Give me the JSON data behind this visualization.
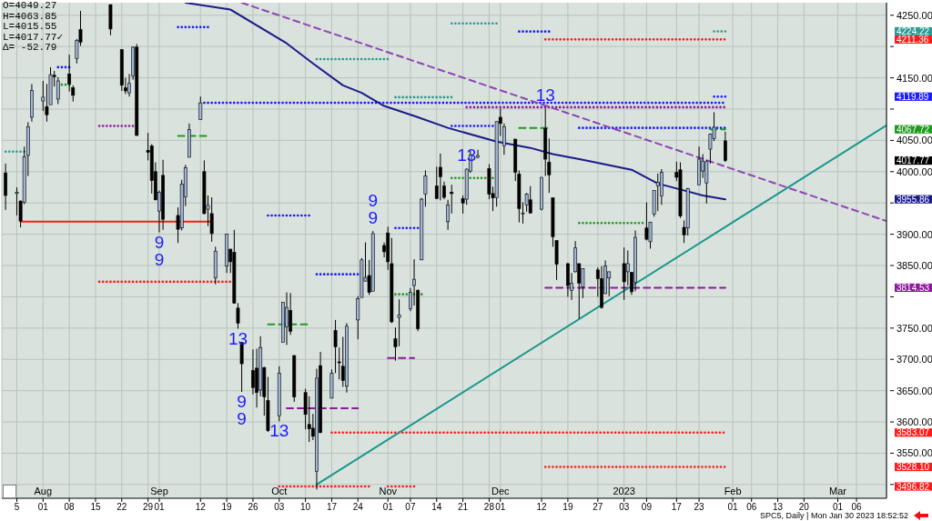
{
  "chart_data": {
    "type": "candlestick",
    "x": [
      "2022-07-22",
      "2022-07-25",
      "2022-07-26",
      "2022-07-27",
      "2022-07-28",
      "2022-07-29",
      "2022-08-01",
      "2022-08-02",
      "2022-08-03",
      "2022-08-04",
      "2022-08-05",
      "2022-08-08",
      "2022-08-09",
      "2022-08-10",
      "2022-08-11",
      "2022-08-19",
      "2022-08-22",
      "2022-08-23",
      "2022-08-24",
      "2022-08-25",
      "2022-08-26",
      "2022-08-29",
      "2022-08-30",
      "2022-08-31",
      "2022-09-01",
      "2022-09-02",
      "2022-09-06",
      "2022-09-07",
      "2022-09-08",
      "2022-09-09",
      "2022-09-12",
      "2022-09-13",
      "2022-09-14",
      "2022-09-15",
      "2022-09-16",
      "2022-09-19",
      "2022-09-20",
      "2022-09-21",
      "2022-09-22",
      "2022-09-23",
      "2022-09-26",
      "2022-09-27",
      "2022-09-28",
      "2022-09-29",
      "2022-09-30",
      "2022-10-03",
      "2022-10-04",
      "2022-10-05",
      "2022-10-06",
      "2022-10-07",
      "2022-10-10",
      "2022-10-11",
      "2022-10-12",
      "2022-10-13",
      "2022-10-14",
      "2022-10-17",
      "2022-10-18",
      "2022-10-19",
      "2022-10-20",
      "2022-10-21",
      "2022-10-24",
      "2022-10-25",
      "2022-10-26",
      "2022-10-27",
      "2022-10-28",
      "2022-10-31",
      "2022-11-01",
      "2022-11-02",
      "2022-11-03",
      "2022-11-04",
      "2022-11-07",
      "2022-11-08",
      "2022-11-09",
      "2022-11-10",
      "2022-11-11",
      "2022-11-14",
      "2022-11-15",
      "2022-11-16",
      "2022-11-17",
      "2022-11-18",
      "2022-11-21",
      "2022-11-22",
      "2022-11-23",
      "2022-11-25",
      "2022-11-28",
      "2022-11-29",
      "2022-11-30",
      "2022-12-01",
      "2022-12-02",
      "2022-12-05",
      "2022-12-06",
      "2022-12-07",
      "2022-12-08",
      "2022-12-09",
      "2022-12-12",
      "2022-12-13",
      "2022-12-14",
      "2022-12-15",
      "2022-12-16",
      "2022-12-19",
      "2022-12-20",
      "2022-12-21",
      "2022-12-22",
      "2022-12-23",
      "2022-12-27",
      "2022-12-28",
      "2022-12-29",
      "2022-12-30",
      "2023-01-03",
      "2023-01-04",
      "2023-01-05",
      "2023-01-06",
      "2023-01-09",
      "2023-01-10",
      "2023-01-11",
      "2023-01-12",
      "2023-01-13",
      "2023-01-17",
      "2023-01-18",
      "2023-01-19",
      "2023-01-20",
      "2023-01-23",
      "2023-01-24",
      "2023-01-25",
      "2023-01-26",
      "2023-01-27",
      "2023-01-30"
    ],
    "ohlc": [
      [
        3998,
        4013,
        3939,
        3962
      ],
      [
        3965,
        3975,
        3930,
        3967
      ],
      [
        3953,
        3954,
        3911,
        3921
      ],
      [
        3951,
        4040,
        3948,
        4024
      ],
      [
        4026,
        4079,
        3993,
        4072
      ],
      [
        4087,
        4140,
        4080,
        4130
      ],
      [
        4113,
        4145,
        4097,
        4119
      ],
      [
        4104,
        4140,
        4080,
        4091
      ],
      [
        4107,
        4167,
        4107,
        4155
      ],
      [
        4154,
        4161,
        4136,
        4152
      ],
      [
        4116,
        4151,
        4108,
        4145
      ],
      [
        4156,
        4187,
        4128,
        4140
      ],
      [
        4134,
        4138,
        4112,
        4122
      ],
      [
        4181,
        4212,
        4173,
        4210
      ],
      [
        4227,
        4257,
        4201,
        4207
      ],
      [
        4267,
        4267,
        4218,
        4228
      ],
      [
        4195,
        4195,
        4129,
        4138
      ],
      [
        4134,
        4150,
        4124,
        4129
      ],
      [
        4126,
        4156,
        4120,
        4141
      ],
      [
        4153,
        4200,
        4147,
        4199
      ],
      [
        4199,
        4204,
        4057,
        4058
      ],
      [
        4034,
        4062,
        4018,
        4031
      ],
      [
        4041,
        4044,
        3965,
        3986
      ],
      [
        4000,
        4015,
        3954,
        3955
      ],
      [
        3937,
        3970,
        3903,
        3967
      ],
      [
        3994,
        4019,
        3907,
        3924
      ],
      [
        3930,
        3943,
        3886,
        3908
      ],
      [
        3910,
        3987,
        3906,
        3980
      ],
      [
        3960,
        4011,
        3945,
        4006
      ],
      [
        4023,
        4077,
        4023,
        4067
      ],
      [
        4083,
        4120,
        4083,
        4110
      ],
      [
        4000,
        4018,
        3932,
        3933
      ],
      [
        3940,
        3962,
        3913,
        3946
      ],
      [
        3933,
        3959,
        3888,
        3901
      ],
      [
        3830,
        3880,
        3820,
        3873
      ],
      [
        3849,
        3900,
        3838,
        3900
      ],
      [
        3876,
        3877,
        3838,
        3856
      ],
      [
        3871,
        3907,
        3789,
        3790
      ],
      [
        3782,
        3790,
        3749,
        3758
      ],
      [
        3727,
        3727,
        3648,
        3693
      ],
      [
        3682,
        3716,
        3644,
        3655
      ],
      [
        3686,
        3717,
        3623,
        3647
      ],
      [
        3651,
        3737,
        3641,
        3719
      ],
      [
        3687,
        3688,
        3610,
        3640
      ],
      [
        3634,
        3672,
        3584,
        3586
      ],
      [
        3610,
        3689,
        3601,
        3678
      ],
      [
        3727,
        3791,
        3727,
        3791
      ],
      [
        3752,
        3807,
        3723,
        3783
      ],
      [
        3778,
        3806,
        3739,
        3745
      ],
      [
        3706,
        3707,
        3632,
        3640
      ],
      [
        3647,
        3653,
        3588,
        3612
      ],
      [
        3596,
        3641,
        3568,
        3589
      ],
      [
        3590,
        3613,
        3571,
        3577
      ],
      [
        3521,
        3685,
        3492,
        3670
      ],
      [
        3690,
        3712,
        3582,
        3583
      ],
      [
        3638,
        3684,
        3638,
        3678
      ],
      [
        3746,
        3763,
        3678,
        3720
      ],
      [
        3696,
        3719,
        3668,
        3695
      ],
      [
        3689,
        3736,
        3656,
        3666
      ],
      [
        3657,
        3758,
        3647,
        3753
      ],
      [
        3763,
        3801,
        3732,
        3797
      ],
      [
        3799,
        3862,
        3799,
        3859
      ],
      [
        3825,
        3887,
        3825,
        3831
      ],
      [
        3834,
        3859,
        3803,
        3807
      ],
      [
        3809,
        3905,
        3809,
        3901
      ],
      [
        3882,
        3887,
        3863,
        3872
      ],
      [
        3902,
        3912,
        3843,
        3856
      ],
      [
        3853,
        3894,
        3758,
        3760
      ],
      [
        3733,
        3751,
        3698,
        3720
      ],
      [
        3767,
        3796,
        3721,
        3771
      ],
      [
        3781,
        3814,
        3777,
        3807
      ],
      [
        3818,
        3860,
        3786,
        3828
      ],
      [
        3810,
        3812,
        3745,
        3749
      ],
      [
        3859,
        3958,
        3859,
        3956
      ],
      [
        3964,
        4002,
        3944,
        3993
      ],
      [
        3977,
        4008,
        3957,
        3957
      ],
      [
        4007,
        4029,
        3954,
        3992
      ],
      [
        3977,
        3984,
        3956,
        3959
      ],
      [
        3920,
        3955,
        3907,
        3947
      ],
      [
        3967,
        3979,
        3933,
        3965
      ],
      [
        3957,
        3962,
        3933,
        3950
      ],
      [
        3956,
        4005,
        3947,
        4004
      ],
      [
        4001,
        4034,
        3998,
        4027
      ],
      [
        4023,
        4035,
        4021,
        4026
      ],
      [
        4005,
        4012,
        3956,
        3964
      ],
      [
        3965,
        3976,
        3937,
        3958
      ],
      [
        3958,
        4080,
        3944,
        4080
      ],
      [
        4087,
        4101,
        4057,
        4077
      ],
      [
        4041,
        4077,
        4027,
        4072
      ],
      [
        4052,
        4052,
        3985,
        3999
      ],
      [
        3996,
        4002,
        3919,
        3941
      ],
      [
        3934,
        3951,
        3917,
        3934
      ],
      [
        3947,
        3966,
        3936,
        3964
      ],
      [
        3955,
        3977,
        3933,
        3934
      ],
      [
        3940,
        3991,
        3938,
        3991
      ],
      [
        4069,
        4101,
        3993,
        4020
      ],
      [
        4015,
        4053,
        3966,
        3995
      ],
      [
        3958,
        3958,
        3880,
        3896
      ],
      [
        3890,
        3890,
        3827,
        3852
      ],
      [
        3853,
        3854,
        3800,
        3818
      ],
      [
        3810,
        3838,
        3795,
        3822
      ],
      [
        3840,
        3889,
        3839,
        3878
      ],
      [
        3853,
        3853,
        3765,
        3822
      ],
      [
        3816,
        3845,
        3798,
        3845
      ],
      [
        3843,
        3847,
        3800,
        3829
      ],
      [
        3829,
        3849,
        3781,
        3783
      ],
      [
        3805,
        3858,
        3805,
        3849
      ],
      [
        3830,
        3840,
        3801,
        3840
      ],
      [
        3853,
        3879,
        3795,
        3824
      ],
      [
        3840,
        3874,
        3818,
        3853
      ],
      [
        3839,
        3839,
        3803,
        3808
      ],
      [
        3823,
        3906,
        3809,
        3895
      ],
      [
        3910,
        3951,
        3890,
        3892
      ],
      [
        3888,
        3920,
        3877,
        3919
      ],
      [
        3932,
        3970,
        3928,
        3970
      ],
      [
        3977,
        3997,
        3937,
        3983
      ],
      [
        3961,
        4004,
        3947,
        3999
      ],
      [
        3999,
        4016,
        3985,
        3991
      ],
      [
        4003,
        4015,
        3926,
        3929
      ],
      [
        3911,
        3922,
        3886,
        3899
      ],
      [
        3910,
        3974,
        3898,
        3973
      ],
      [
        3979,
        4040,
        3979,
        4020
      ],
      [
        4001,
        4028,
        3990,
        4017
      ],
      [
        3982,
        4019,
        3949,
        4016
      ],
      [
        4036,
        4061,
        4013,
        4060
      ],
      [
        4053,
        4095,
        4049,
        4071
      ],
      [
        4049.27,
        4063.85,
        4015.55,
        4017.77
      ]
    ],
    "series": [
      {
        "type": "line",
        "color": "#ff1a1a",
        "x": [
          "2022-07-26",
          "2022-09-15"
        ],
        "values": [
          3920,
          3920
        ],
        "line_style": "solid"
      },
      {
        "type": "line",
        "color": "#2a9a94",
        "x": [
          "2022-07-22",
          "2022-07-27"
        ],
        "values": [
          4032,
          4032
        ],
        "line_style": "dotted"
      },
      {
        "type": "line",
        "color": "#1a1aff",
        "x": [
          "2022-08-05",
          "2022-08-08"
        ],
        "values": [
          4167,
          4167
        ],
        "line_style": "dotted"
      },
      {
        "type": "line",
        "color": "#1e9a1e",
        "x": [
          "2022-08-05",
          "2022-08-08"
        ],
        "values": [
          4139,
          4139
        ],
        "line_style": "dotted"
      },
      {
        "type": "line",
        "color": "#8b1a9a",
        "x": [
          "2022-08-16",
          "2022-08-26"
        ],
        "values": [
          4073,
          4073
        ],
        "line_style": "dotted"
      },
      {
        "type": "line",
        "color": "#ff1a1a",
        "x": [
          "2022-08-16",
          "2022-09-20"
        ],
        "values": [
          3824,
          3824
        ],
        "line_style": "dotted"
      },
      {
        "type": "line",
        "color": "#1a1aff",
        "x": [
          "2022-09-06",
          "2022-09-14"
        ],
        "values": [
          4231,
          4231
        ],
        "line_style": "dotted"
      },
      {
        "type": "line",
        "color": "#1e9a1e",
        "x": [
          "2022-09-06",
          "2022-09-14"
        ],
        "values": [
          4057,
          4057
        ],
        "line_style": "dashed"
      },
      {
        "type": "line",
        "color": "#1a1aff",
        "x": [
          "2022-09-13",
          "2023-01-30"
        ],
        "values": [
          4110,
          4110
        ],
        "line_style": "dotted"
      },
      {
        "type": "line",
        "color": "#1a1aff",
        "x": [
          "2022-09-30",
          "2022-10-11"
        ],
        "values": [
          3930,
          3930
        ],
        "line_style": "dotted"
      },
      {
        "type": "line",
        "color": "#1e9a1e",
        "x": [
          "2022-09-30",
          "2022-10-11"
        ],
        "values": [
          3756,
          3756
        ],
        "line_style": "dashed"
      },
      {
        "type": "line",
        "color": "#ff1a1a",
        "x": [
          "2022-10-03",
          "2022-10-27"
        ],
        "values": [
          3497,
          3497
        ],
        "line_style": "dotted"
      },
      {
        "type": "line",
        "color": "#8b1a9a",
        "x": [
          "2022-10-05",
          "2022-10-24"
        ],
        "values": [
          3622,
          3622
        ],
        "line_style": "dashed"
      },
      {
        "type": "line",
        "color": "#2a9a94",
        "x": [
          "2022-10-13",
          "2022-11-01"
        ],
        "values": [
          4180,
          4180
        ],
        "line_style": "dotted"
      },
      {
        "type": "line",
        "color": "#1a1aff",
        "x": [
          "2022-10-13",
          "2022-10-24"
        ],
        "values": [
          3836,
          3836
        ],
        "line_style": "dotted"
      },
      {
        "type": "line",
        "color": "#ff1a1a",
        "x": [
          "2022-10-17",
          "2023-01-30"
        ],
        "values": [
          3583.07,
          3583.07
        ],
        "line_style": "dotted"
      },
      {
        "type": "line",
        "color": "#ff1a1a",
        "x": [
          "2022-11-01",
          "2022-11-08"
        ],
        "values": [
          3496.82,
          3496.82
        ],
        "line_style": "dotted"
      },
      {
        "type": "line",
        "color": "#8b1a9a",
        "x": [
          "2022-11-01",
          "2022-11-08"
        ],
        "values": [
          3702,
          3702
        ],
        "line_style": "dashed"
      },
      {
        "type": "line",
        "color": "#1a1aff",
        "x": [
          "2022-11-03",
          "2022-11-10"
        ],
        "values": [
          3910,
          3910
        ],
        "line_style": "dotted"
      },
      {
        "type": "line",
        "color": "#2a9a94",
        "x": [
          "2022-11-03",
          "2022-11-18"
        ],
        "values": [
          4119,
          4119
        ],
        "line_style": "dotted"
      },
      {
        "type": "line",
        "color": "#1e9a1e",
        "x": [
          "2022-11-03",
          "2022-11-10"
        ],
        "values": [
          3804,
          3804
        ],
        "line_style": "dotted"
      },
      {
        "type": "line",
        "color": "#2a9a94",
        "x": [
          "2022-11-18",
          "2022-11-30"
        ],
        "values": [
          4237,
          4237
        ],
        "line_style": "dotted"
      },
      {
        "type": "line",
        "color": "#1a1aff",
        "x": [
          "2022-11-18",
          "2022-11-29"
        ],
        "values": [
          4073,
          4073
        ],
        "line_style": "dotted"
      },
      {
        "type": "line",
        "color": "#1e9a1e",
        "x": [
          "2022-11-18",
          "2022-11-29"
        ],
        "values": [
          3990,
          3990
        ],
        "line_style": "dotted"
      },
      {
        "type": "line",
        "color": "#8b1a9a",
        "x": [
          "2022-11-22",
          "2023-01-30"
        ],
        "values": [
          4103,
          4103
        ],
        "line_style": "dotted"
      },
      {
        "type": "line",
        "color": "#1a1aff",
        "x": [
          "2022-12-06",
          "2022-12-14"
        ],
        "values": [
          4224,
          4224
        ],
        "line_style": "dotted"
      },
      {
        "type": "line",
        "color": "#1e9a1e",
        "x": [
          "2022-12-06",
          "2022-12-14"
        ],
        "values": [
          4070,
          4070
        ],
        "line_style": "dashed"
      },
      {
        "type": "line",
        "color": "#ff1a1a",
        "x": [
          "2022-12-13",
          "2023-01-30"
        ],
        "values": [
          4211.36,
          4211.36
        ],
        "line_style": "dotted"
      },
      {
        "type": "line",
        "color": "#8b1a9a",
        "x": [
          "2022-12-13",
          "2023-01-30"
        ],
        "values": [
          3814.53,
          3814.53
        ],
        "line_style": "dashed"
      },
      {
        "type": "line",
        "color": "#ff1a1a",
        "x": [
          "2022-12-13",
          "2023-01-30"
        ],
        "values": [
          3528.1,
          3528.1
        ],
        "line_style": "dotted"
      },
      {
        "type": "line",
        "color": "#1a1aff",
        "x": [
          "2022-12-22",
          "2023-01-30"
        ],
        "values": [
          4070,
          4070
        ],
        "line_style": "dotted"
      },
      {
        "type": "line",
        "color": "#1e9a1e",
        "x": [
          "2022-12-22",
          "2023-01-08"
        ],
        "values": [
          3918,
          3918
        ],
        "line_style": "dotted"
      },
      {
        "type": "line",
        "color": "#1e9a1e",
        "x": [
          "2023-01-26",
          "2023-01-30"
        ],
        "values": [
          4067.72,
          4067.72
        ],
        "line_style": "dashed"
      },
      {
        "type": "line",
        "color": "#1a1aff",
        "x": [
          "2023-01-27",
          "2023-01-30"
        ],
        "values": [
          4119.89,
          4119.89
        ],
        "line_style": "dotted"
      },
      {
        "type": "line",
        "color": "#2a9a94",
        "x": [
          "2023-01-27",
          "2023-01-30"
        ],
        "values": [
          4224.22,
          4224.22
        ],
        "line_style": "dotted"
      },
      {
        "type": "line",
        "color": "#1b1b8a",
        "x": [
          "2022-09-08",
          "2022-09-20",
          "2022-10-05",
          "2022-10-12",
          "2022-10-20",
          "2022-10-25",
          "2022-10-31",
          "2022-11-08",
          "2022-11-17",
          "2022-11-30",
          "2022-12-09",
          "2022-12-15",
          "2022-12-23",
          "2023-01-05",
          "2023-01-12",
          "2023-01-24",
          "2023-01-30"
        ],
        "values": [
          4270,
          4259,
          4205,
          4173,
          4138,
          4126,
          4105,
          4089,
          4070,
          4048,
          4038,
          4028,
          4019,
          4003,
          3981,
          3962,
          3955.86
        ],
        "line_style": "solid"
      },
      {
        "type": "line",
        "color": "#8f45b5",
        "x": [
          "2022-09-23",
          "2023-03-14"
        ],
        "values": [
          4270,
          3921
        ],
        "line_style": "dashed"
      },
      {
        "type": "line",
        "color": "#17968c",
        "x": [
          "2022-10-13",
          "2023-03-14"
        ],
        "values": [
          3500,
          4074
        ],
        "line_style": "solid"
      }
    ],
    "annotations": [
      "O=4049.27",
      "H=4063.85",
      "L=4015.55",
      "L=4017.77✓",
      "Δ= -52.79",
      "SPC5, Daily | Mon Jan 30 2023 18:52:52",
      {
        "text": "9",
        "x": "2022-09-01",
        "y": 3903
      },
      {
        "text": "9",
        "x": "2022-09-01",
        "y": 3903
      },
      {
        "text": "9",
        "x": "2022-09-23",
        "y": 3648
      },
      {
        "text": "9",
        "x": "2022-09-23",
        "y": 3648
      },
      {
        "text": "9",
        "x": "2022-10-28",
        "y": 3905
      },
      {
        "text": "9",
        "x": "2022-10-28",
        "y": 3905
      },
      {
        "text": "13",
        "x": "2022-09-22",
        "y": 3749
      },
      {
        "text": "13",
        "x": "2022-11-22",
        "y": 4005
      },
      {
        "text": "13",
        "x": "2022-10-03",
        "y": 3601
      },
      {
        "text": "13",
        "x": "2022-12-13",
        "y": 4101
      }
    ],
    "xlim": [
      "2022-07-21",
      "2023-03-14"
    ],
    "xticks": [
      {
        "value": "2022-07-25",
        "label": "5"
      },
      {
        "value": "2022-08-01",
        "label": "Aug\n01"
      },
      {
        "value": "2022-08-08",
        "label": "08"
      },
      {
        "value": "2022-08-15",
        "label": "15"
      },
      {
        "value": "2022-08-22",
        "label": "22"
      },
      {
        "value": "2022-08-29",
        "label": "29"
      },
      {
        "value": "2022-09-01",
        "label": "Sep\n01"
      },
      {
        "value": "2022-09-12",
        "label": "12"
      },
      {
        "value": "2022-09-19",
        "label": "19"
      },
      {
        "value": "2022-09-26",
        "label": "26"
      },
      {
        "value": "2022-10-03",
        "label": "Oct\n03"
      },
      {
        "value": "2022-10-10",
        "label": "10"
      },
      {
        "value": "2022-10-17",
        "label": "17"
      },
      {
        "value": "2022-10-24",
        "label": "24"
      },
      {
        "value": "2022-11-01",
        "label": "Nov\n01"
      },
      {
        "value": "2022-11-07",
        "label": "07"
      },
      {
        "value": "2022-11-14",
        "label": "14"
      },
      {
        "value": "2022-11-21",
        "label": "21"
      },
      {
        "value": "2022-11-28",
        "label": "28"
      },
      {
        "value": "2022-12-01",
        "label": "Dec\n01"
      },
      {
        "value": "2022-12-12",
        "label": "12"
      },
      {
        "value": "2022-12-19",
        "label": "19"
      },
      {
        "value": "2022-12-27",
        "label": "27"
      },
      {
        "value": "2023-01-03",
        "label": "2023\n03"
      },
      {
        "value": "2023-01-09",
        "label": "09"
      },
      {
        "value": "2023-01-17",
        "label": "17"
      },
      {
        "value": "2023-01-23",
        "label": "23"
      },
      {
        "value": "2023-02-01",
        "label": "Feb\n01"
      },
      {
        "value": "2023-02-06",
        "label": "06"
      },
      {
        "value": "2023-02-13",
        "label": "13"
      },
      {
        "value": "2023-02-20",
        "label": "20"
      },
      {
        "value": "2023-03-01",
        "label": "Mar\n01"
      },
      {
        "value": "2023-03-06",
        "label": "06"
      }
    ],
    "ylim": [
      3478,
      4270
    ],
    "yticks": [
      {
        "value": 3496.82,
        "label": "3496.82"
      },
      {
        "value": 3528.1,
        "label": "3528.10"
      },
      {
        "value": 3583.07,
        "label": "3583.07"
      },
      {
        "value": 3814.53,
        "label": "3814.53"
      },
      {
        "value": 3955.86,
        "label": "3955.86"
      },
      {
        "value": 4017.77,
        "label": "4017.77"
      },
      {
        "value": 4067.72,
        "label": "4067.72"
      },
      {
        "value": 4119.89,
        "label": "4119.89"
      },
      {
        "value": 4211.36,
        "label": "4211.36"
      },
      {
        "value": 4224.22,
        "label": "4224.22"
      },
      {
        "value": 3500,
        "label": null
      },
      {
        "value": 3550,
        "label": "3550.00"
      },
      {
        "value": 3600,
        "label": "3600.00"
      },
      {
        "value": 3650,
        "label": "3650.00"
      },
      {
        "value": 3700,
        "label": "3700.00"
      },
      {
        "value": 3750,
        "label": "3750.00"
      },
      {
        "value": 3800,
        "label": null
      },
      {
        "value": 3850,
        "label": "3850.00"
      },
      {
        "value": 3900,
        "label": "3900.00"
      },
      {
        "value": 3950,
        "label": null
      },
      {
        "value": 4000,
        "label": "4000.00"
      },
      {
        "value": 4050,
        "label": "4050.00"
      },
      {
        "value": 4100,
        "label": null
      },
      {
        "value": 4150,
        "label": "4150.00"
      },
      {
        "value": 4200,
        "label": null
      },
      {
        "value": 4250,
        "label": "4250.00"
      }
    ],
    "grid": true
  }
}
